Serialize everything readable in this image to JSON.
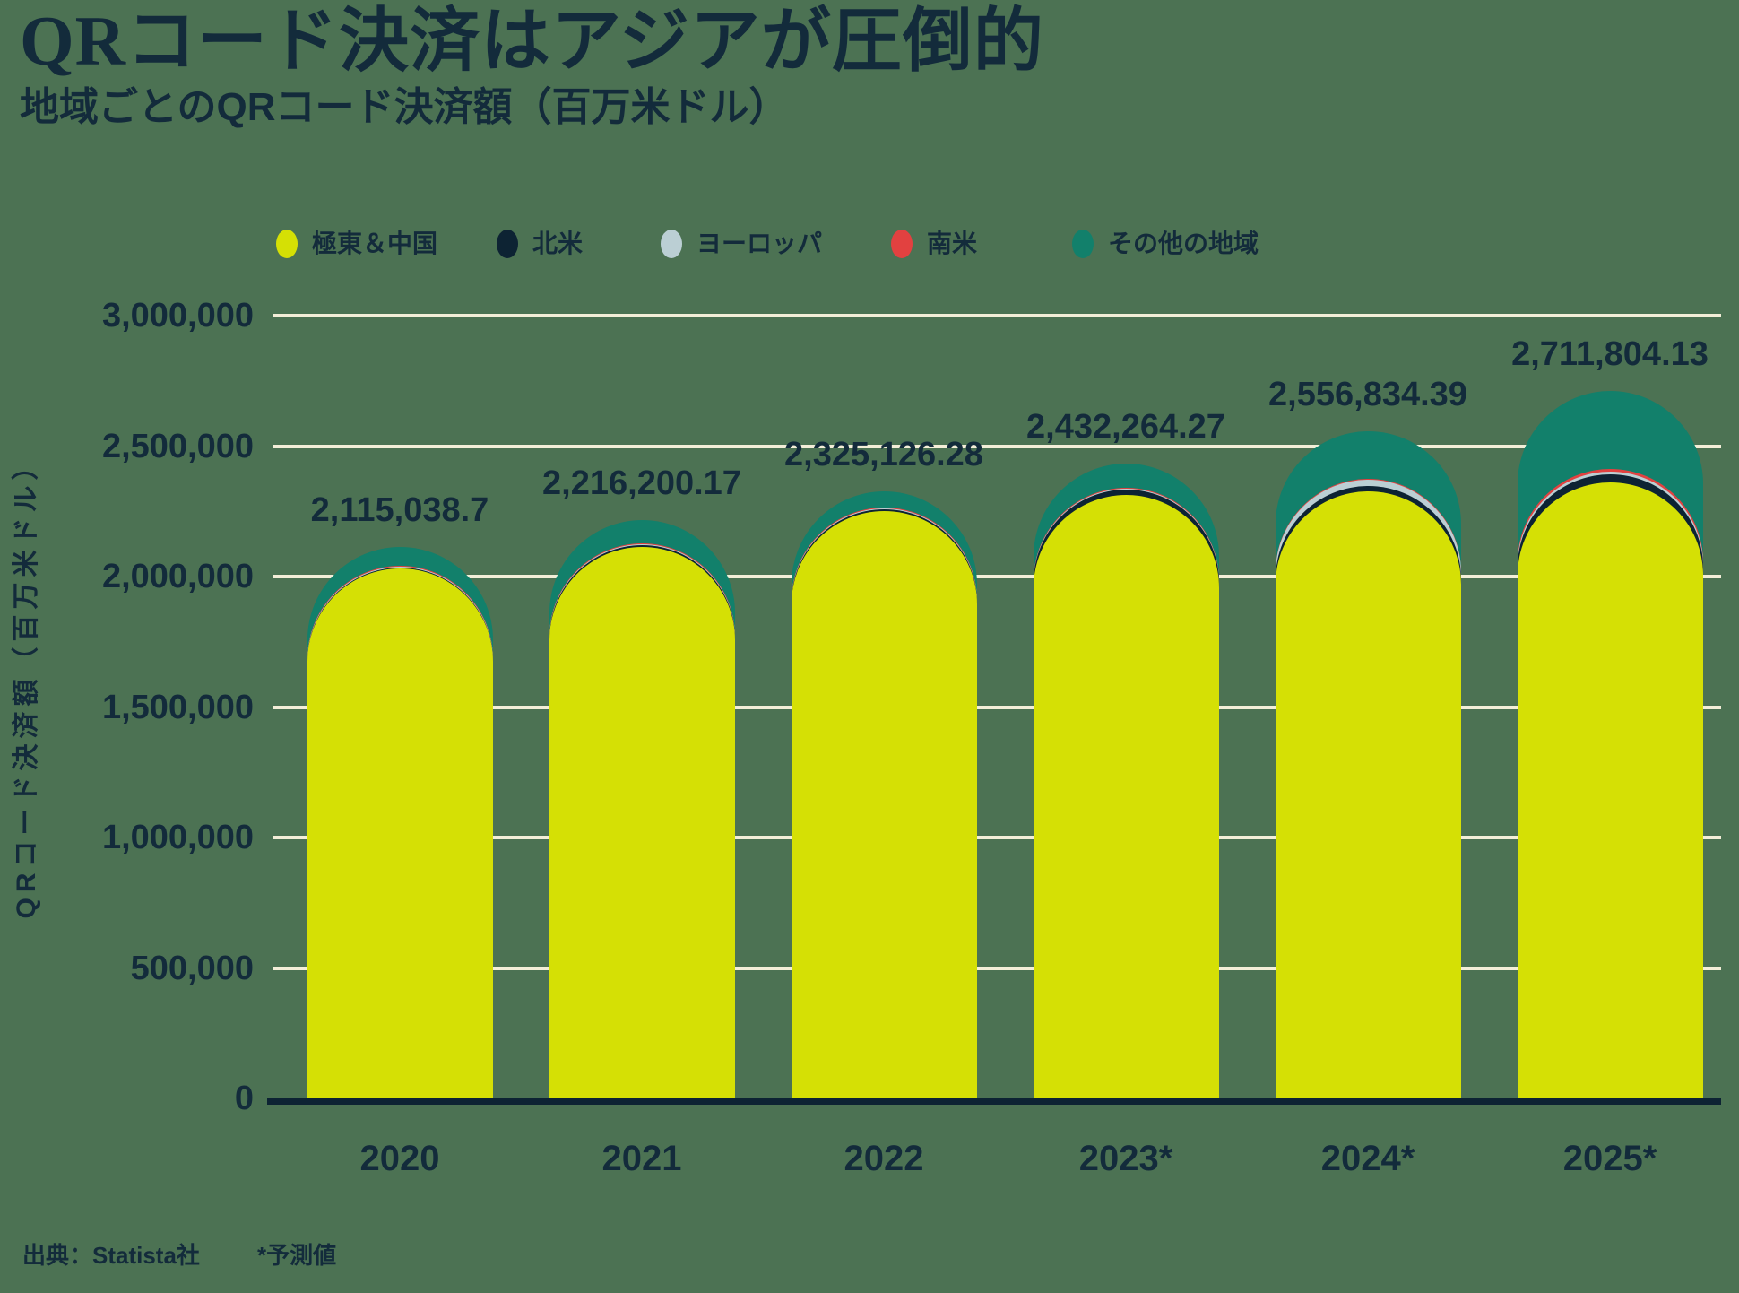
{
  "title": "QRコード決済はアジアが圧倒的",
  "subtitle": "地域ごとのQRコード決済額（百万米ドル）",
  "y_axis_title": "QRコード決済額（百万米ドル）",
  "footer": {
    "source": "出典：Statista社",
    "forecast_note": "*予測値"
  },
  "colors": {
    "background": "#4c7253",
    "text": "#132b3b",
    "gridline": "#f3eed8",
    "axis": "#0d2333",
    "far_east_china": "#d5e005",
    "north_america": "#0d2333",
    "europe": "#bbcfd4",
    "south_america": "#e24140",
    "other_regions": "#12806b"
  },
  "legend": [
    {
      "key": "far-east-china",
      "label": "極東＆中国",
      "color": "#d5e005"
    },
    {
      "key": "north-america",
      "label": "北米",
      "color": "#0d2333"
    },
    {
      "key": "europe",
      "label": "ヨーロッパ",
      "color": "#bbcfd4"
    },
    {
      "key": "south-america",
      "label": "南米",
      "color": "#e24140"
    },
    {
      "key": "other-regions",
      "label": "その他の地域",
      "color": "#12806b"
    }
  ],
  "chart_data": {
    "type": "bar",
    "stacked": true,
    "rounded_tops": true,
    "grid": true,
    "legend_position": "top",
    "categories": [
      "2020",
      "2021",
      "2022",
      "2023*",
      "2024*",
      "2025*"
    ],
    "series": [
      {
        "key": "far-east-china",
        "name": "極東＆中国",
        "color": "#d5e005",
        "values": [
          2029538.7,
          2112700.17,
          2251126.28,
          2312264.27,
          2325834.39,
          2360804.13
        ]
      },
      {
        "key": "north-america",
        "name": "北米",
        "color": "#0d2333",
        "values": [
          5000,
          6500,
          7000,
          21000,
          21000,
          31000
        ]
      },
      {
        "key": "europe",
        "name": "ヨーロッパ",
        "color": "#bbcfd4",
        "values": [
          3500,
          4500,
          4500,
          4500,
          24000,
          10000
        ]
      },
      {
        "key": "south-america",
        "name": "南米",
        "color": "#e24140",
        "values": [
          2000,
          2500,
          2500,
          2500,
          3000,
          10000
        ]
      },
      {
        "key": "other-regions",
        "name": "その他の地域",
        "color": "#12806b",
        "values": [
          75000,
          90000,
          60000,
          92000,
          183000,
          300000
        ]
      }
    ],
    "totals": [
      2115038.7,
      2216200.17,
      2325126.28,
      2432264.27,
      2556834.39,
      2711804.13
    ],
    "total_labels": [
      "2,115,038.7",
      "2,216,200.17",
      "2,325,126.28",
      "2,432,264.27",
      "2,556,834.39",
      "2,711,804.13"
    ],
    "xlabel": "",
    "ylabel": "QRコード決済額（百万米ドル）",
    "ylim": [
      0,
      3000000
    ],
    "ytick_step": 500000,
    "ytick_labels": [
      "0",
      "500,000",
      "1,000,000",
      "1,500,000",
      "2,000,000",
      "2,500,000",
      "3,000,000"
    ]
  }
}
